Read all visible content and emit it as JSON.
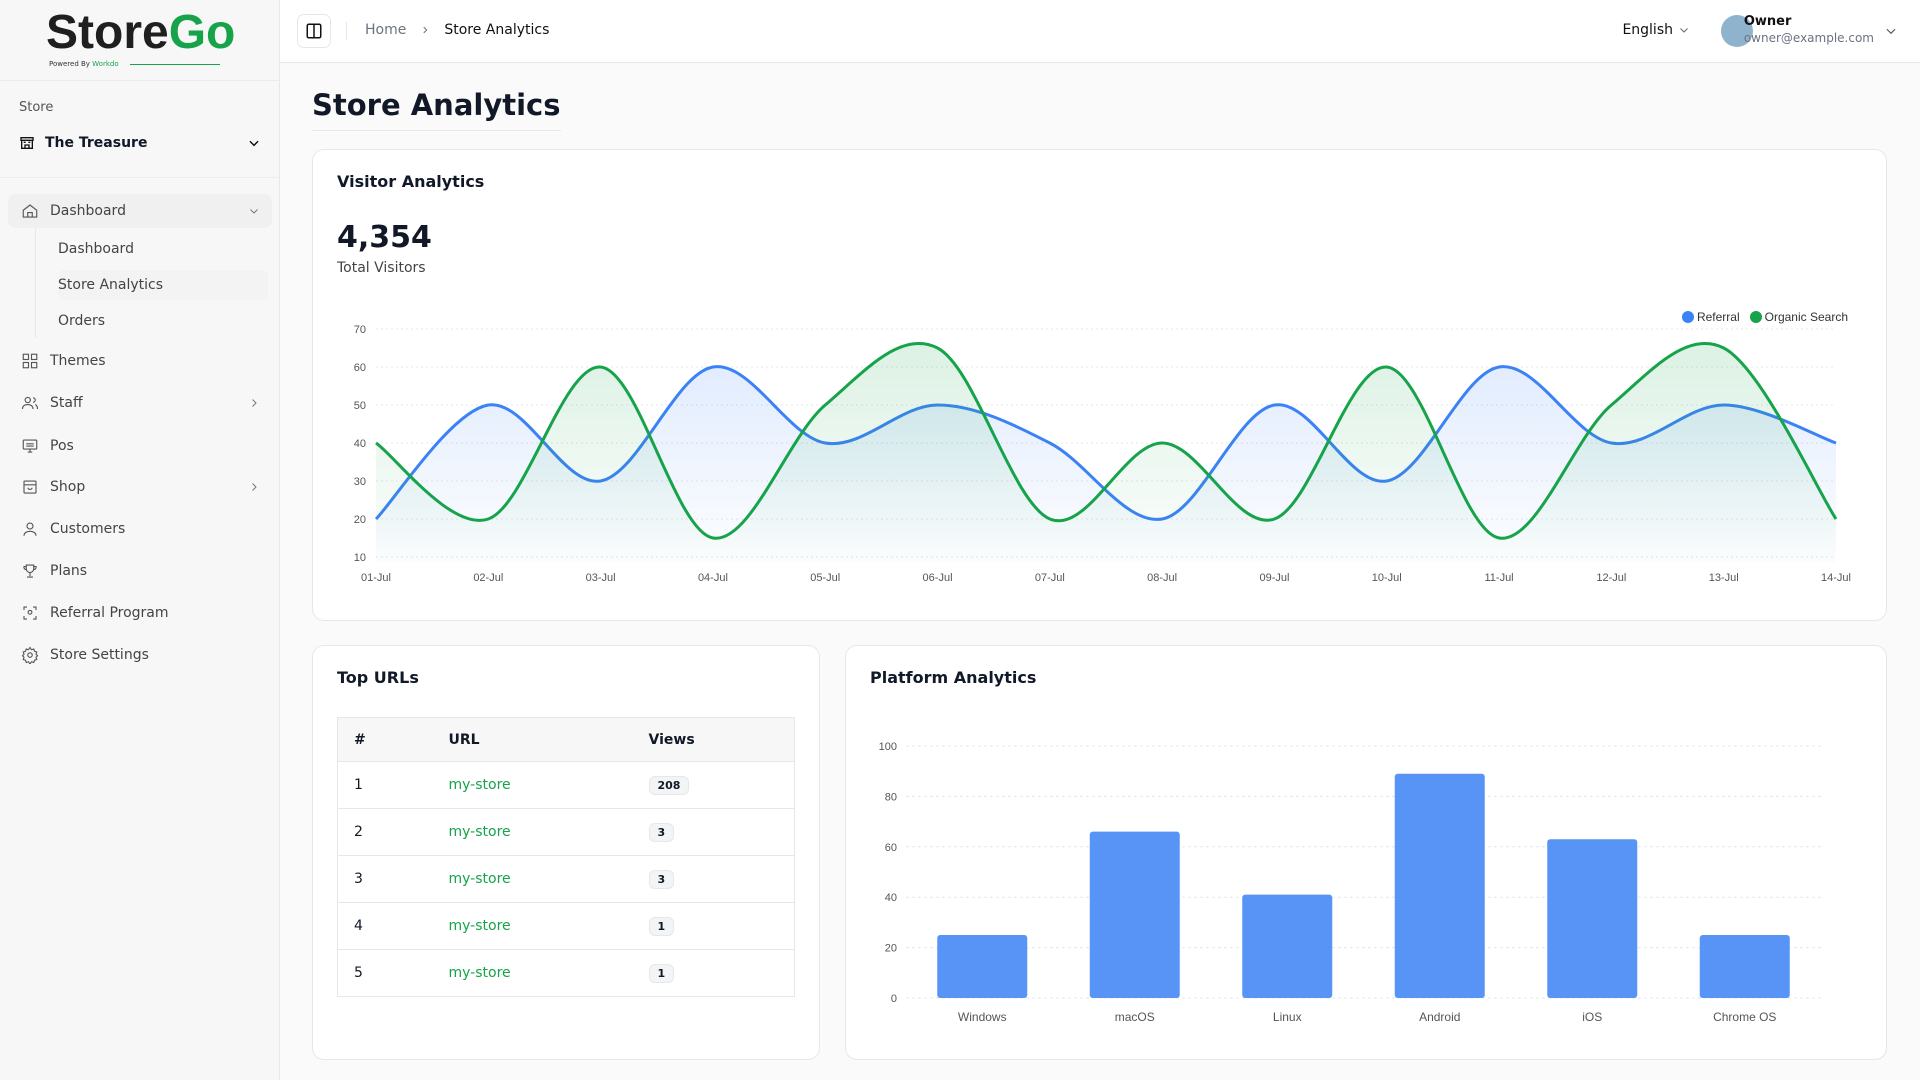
{
  "brand": {
    "name_a": "Store",
    "name_b": "Go",
    "tagline": "Powered By",
    "tagline_brand": "Workdo"
  },
  "sidebar": {
    "store_label": "Store",
    "store_name": "The Treasure",
    "dashboard_group": "Dashboard",
    "dashboard_sub": [
      "Dashboard",
      "Store Analytics",
      "Orders"
    ],
    "items": [
      {
        "label": "Themes",
        "icon": "grid-icon"
      },
      {
        "label": "Staff",
        "icon": "users-icon",
        "chevron": true
      },
      {
        "label": "Pos",
        "icon": "pos-icon"
      },
      {
        "label": "Shop",
        "icon": "shop-icon",
        "chevron": true
      },
      {
        "label": "Customers",
        "icon": "user-icon"
      },
      {
        "label": "Plans",
        "icon": "trophy-icon"
      },
      {
        "label": "Referral Program",
        "icon": "referral-icon"
      },
      {
        "label": "Store Settings",
        "icon": "gear-icon"
      }
    ]
  },
  "header": {
    "breadcrumb": [
      "Home",
      "Store Analytics"
    ],
    "language": "English",
    "user_name": "Owner",
    "user_email": "owner@example.com"
  },
  "page_title": "Store Analytics",
  "visitor": {
    "title": "Visitor Analytics",
    "total": "4,354",
    "total_label": "Total Visitors"
  },
  "top_urls": {
    "title": "Top URLs",
    "columns": [
      "#",
      "URL",
      "Views"
    ],
    "rows": [
      [
        "1",
        "my-store",
        "208"
      ],
      [
        "2",
        "my-store",
        "3"
      ],
      [
        "3",
        "my-store",
        "3"
      ],
      [
        "4",
        "my-store",
        "1"
      ],
      [
        "5",
        "my-store",
        "1"
      ]
    ]
  },
  "platform": {
    "title": "Platform Analytics"
  },
  "chart_data": [
    {
      "type": "area",
      "categories": [
        "01-Jul",
        "02-Jul",
        "03-Jul",
        "04-Jul",
        "05-Jul",
        "06-Jul",
        "07-Jul",
        "08-Jul",
        "09-Jul",
        "10-Jul",
        "11-Jul",
        "12-Jul",
        "13-Jul",
        "14-Jul"
      ],
      "series": [
        {
          "name": "Referral",
          "color": "#3b82f6",
          "values": [
            20,
            50,
            30,
            60,
            40,
            50,
            40,
            20,
            50,
            30,
            60,
            40,
            50,
            40
          ]
        },
        {
          "name": "Organic Search",
          "color": "#16a34a",
          "values": [
            40,
            20,
            60,
            15,
            50,
            65,
            20,
            40,
            20,
            60,
            15,
            50,
            65,
            20
          ]
        }
      ],
      "ylim": [
        10,
        70
      ],
      "yticks": [
        10,
        20,
        30,
        40,
        50,
        60,
        70
      ],
      "grid": true,
      "legend": "top-right"
    },
    {
      "type": "bar",
      "categories": [
        "Windows",
        "macOS",
        "Linux",
        "Android",
        "iOS",
        "Chrome OS"
      ],
      "values": [
        25,
        66,
        41,
        89,
        63,
        25
      ],
      "color": "#5794f5",
      "ylim": [
        0,
        100
      ],
      "yticks": [
        0,
        20,
        40,
        60,
        80,
        100
      ],
      "grid": true
    }
  ]
}
